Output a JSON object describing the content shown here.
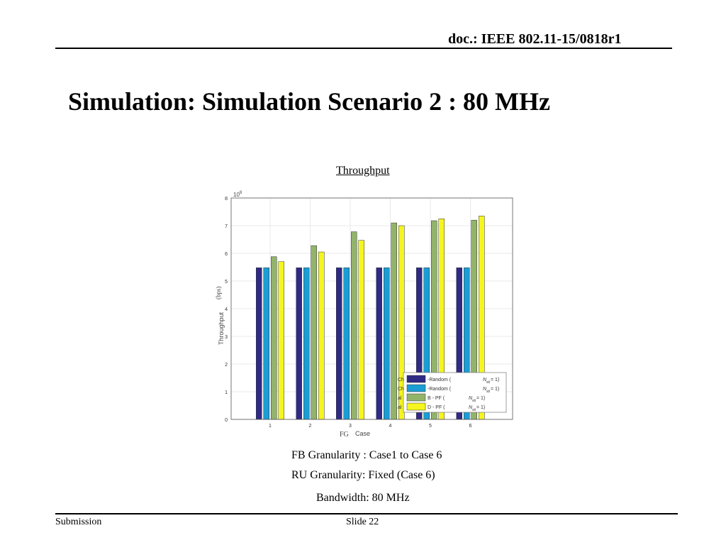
{
  "header": {
    "doc_label": "doc.: IEEE 802.11-15/0818r1"
  },
  "slide": {
    "title": "Simulation: Simulation Scenario 2 : 80 MHz"
  },
  "chart_title": "Throughput",
  "chart_data": {
    "type": "bar",
    "categories": [
      "1",
      "2",
      "3",
      "4",
      "5",
      "6"
    ],
    "ylim": [
      0,
      8
    ],
    "yticks": [
      "0",
      "1",
      "2",
      "3",
      "4",
      "5",
      "6",
      "7",
      "8"
    ],
    "y_exponent": "10",
    "y_exponent_power": "8",
    "ylabel": "Throughput",
    "ylabel_unit": "(bps)",
    "xlabel_prefix": "FG",
    "xlabel": "Case",
    "grid": true,
    "legend_position": "bottom-right",
    "series": [
      {
        "name": "-Random (",
        "n_label": "N",
        "n_sub": "sti",
        "n_value": "= 1)",
        "prefix": "Ch",
        "color": "#2e2a85",
        "values": [
          5.48,
          5.48,
          5.48,
          5.48,
          5.48,
          5.48
        ]
      },
      {
        "name": "-Random (",
        "n_label": "N",
        "n_sub": "sti",
        "n_value": "= 1)",
        "prefix": "Ch",
        "color": "#1a9ed4",
        "values": [
          5.48,
          5.48,
          5.48,
          5.48,
          5.48,
          5.48
        ]
      },
      {
        "name": "B - PF (",
        "n_label": "N",
        "n_sub": "sti",
        "n_value": "= 1)",
        "prefix": "al",
        "color": "#92b46a",
        "values": [
          5.88,
          6.28,
          6.78,
          7.1,
          7.18,
          7.2
        ]
      },
      {
        "name": "D - PF (",
        "n_label": "N",
        "n_sub": "sti",
        "n_value": "= 1)",
        "prefix": "al",
        "color": "#f5f51f",
        "values": [
          5.7,
          6.05,
          6.47,
          7.0,
          7.25,
          7.35
        ]
      }
    ]
  },
  "notes": {
    "fb_granularity": "FB Granularity : Case1 to Case 6",
    "ru_granularity": "RU Granularity: Fixed (Case 6)",
    "bandwidth": "Bandwidth: 80 MHz"
  },
  "footer": {
    "left": "Submission",
    "center": "Slide 22"
  }
}
